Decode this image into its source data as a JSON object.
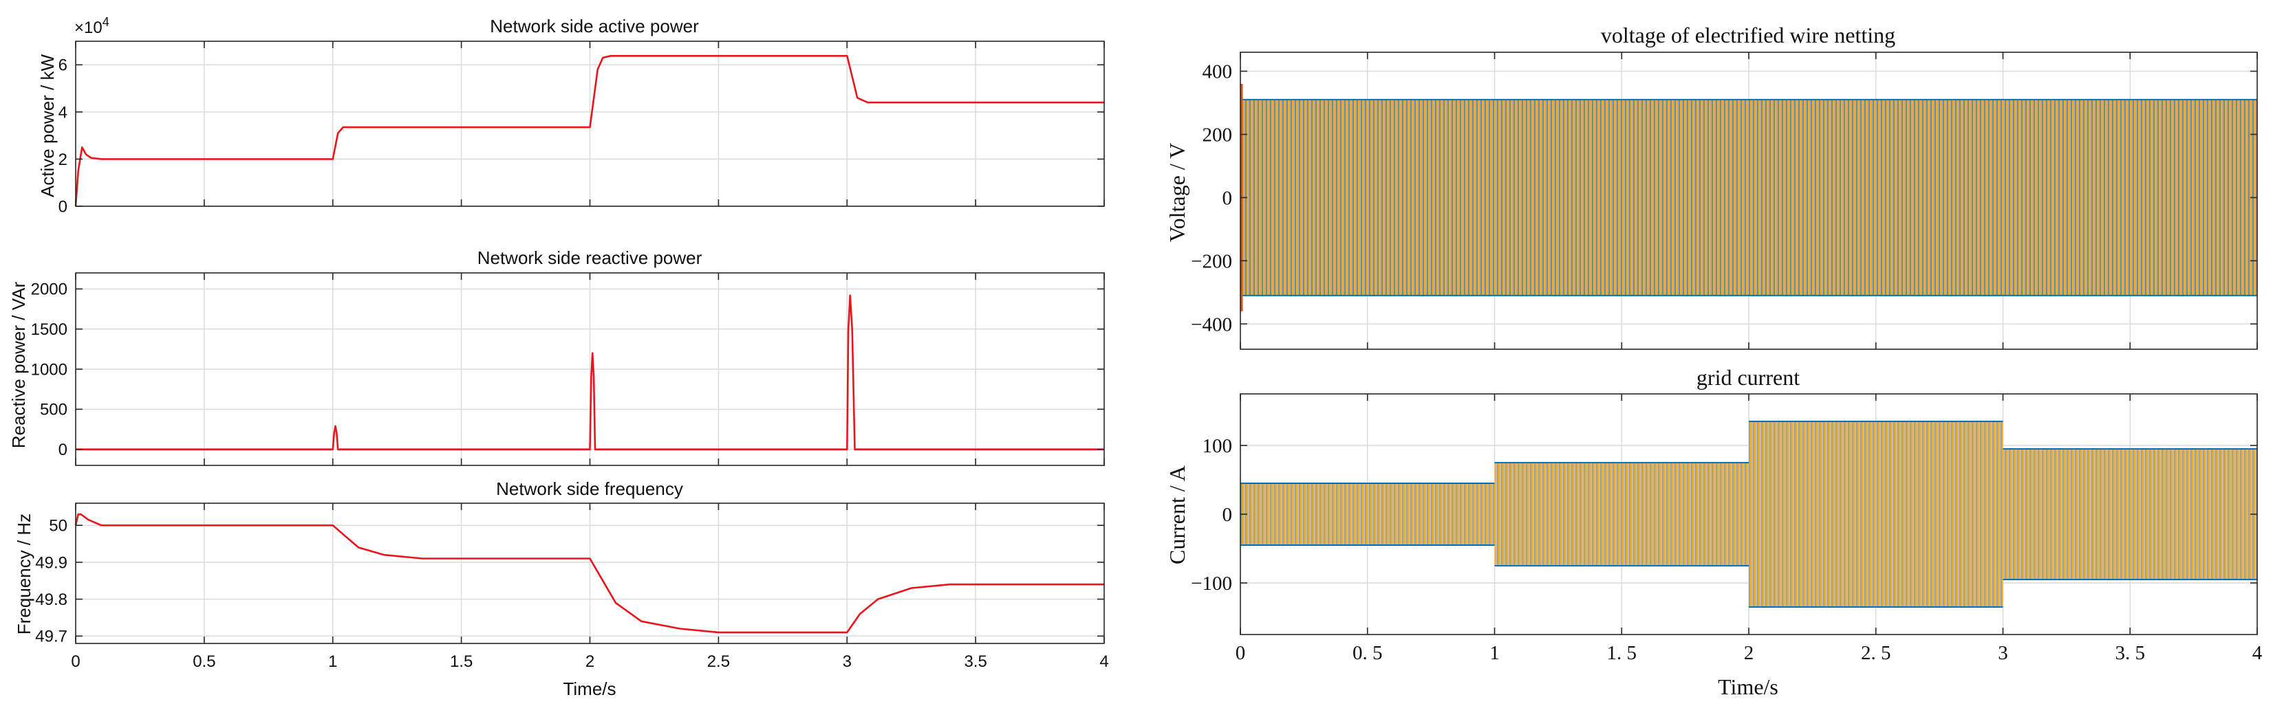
{
  "figure": {
    "left_xlabel": "Time/s",
    "right_xlabel": "Time/s"
  },
  "chart_data": [
    {
      "id": "active",
      "type": "line",
      "title": "Network side active power",
      "xlabel": "",
      "ylabel": "Active power / kW",
      "xlim": [
        0,
        4
      ],
      "ylim": [
        0,
        70000
      ],
      "x_ticks": [
        "0",
        "0.5",
        "1",
        "1.5",
        "2",
        "2.5",
        "3",
        "3.5",
        "4"
      ],
      "y_ticks": [
        0,
        20000,
        40000,
        60000
      ],
      "y_tick_labels": [
        "0",
        "2",
        "4",
        "6"
      ],
      "y_exponent": "×10",
      "y_exponent_power": "4",
      "grid": true,
      "line_color": "#e8151b",
      "series": [
        {
          "points": [
            [
              0,
              0
            ],
            [
              0.01,
              15000
            ],
            [
              0.025,
              25000
            ],
            [
              0.04,
              22000
            ],
            [
              0.06,
              20500
            ],
            [
              0.1,
              20000
            ],
            [
              1.0,
              20000
            ],
            [
              1.02,
              31000
            ],
            [
              1.04,
              33500
            ],
            [
              2.0,
              33500
            ],
            [
              2.03,
              58000
            ],
            [
              2.05,
              63000
            ],
            [
              2.08,
              63800
            ],
            [
              3.0,
              63800
            ],
            [
              3.02,
              55000
            ],
            [
              3.04,
              46000
            ],
            [
              3.08,
              44000
            ],
            [
              4.0,
              44000
            ]
          ]
        }
      ]
    },
    {
      "id": "reactive",
      "type": "line",
      "title": "Network side reactive power",
      "xlabel": "",
      "ylabel": "Reactive power / VAr",
      "xlim": [
        0,
        4
      ],
      "ylim": [
        -200,
        2200
      ],
      "x_ticks": [
        "0",
        "0.5",
        "1",
        "1.5",
        "2",
        "2.5",
        "3",
        "3.5",
        "4"
      ],
      "y_ticks": [
        "0",
        "500",
        "1000",
        "1500",
        "2000"
      ],
      "grid": true,
      "line_color": "#e8151b",
      "series": [
        {
          "points": [
            [
              0,
              0
            ],
            [
              1.0,
              0
            ],
            [
              1.005,
              200
            ],
            [
              1.01,
              290
            ],
            [
              1.015,
              200
            ],
            [
              1.02,
              0
            ],
            [
              2.0,
              0
            ],
            [
              2.005,
              900
            ],
            [
              2.01,
              1200
            ],
            [
              2.015,
              900
            ],
            [
              2.02,
              0
            ],
            [
              3.0,
              0
            ],
            [
              3.005,
              1500
            ],
            [
              3.012,
              1920
            ],
            [
              3.02,
              1500
            ],
            [
              3.03,
              0
            ],
            [
              4.0,
              0
            ]
          ]
        }
      ]
    },
    {
      "id": "frequency",
      "type": "line",
      "title": "Network side frequency",
      "xlabel": "Time/s",
      "ylabel": "Frequency / Hz",
      "xlim": [
        0,
        4
      ],
      "ylim": [
        49.68,
        50.06
      ],
      "x_ticks": [
        "0",
        "0.5",
        "1",
        "1.5",
        "2",
        "2.5",
        "3",
        "3.5",
        "4"
      ],
      "y_ticks": [
        "49.7",
        "49.8",
        "49.9",
        "50"
      ],
      "grid": true,
      "line_color": "#e8151b",
      "series": [
        {
          "points": [
            [
              0,
              50.0
            ],
            [
              0.01,
              50.03
            ],
            [
              0.02,
              50.03
            ],
            [
              0.05,
              50.015
            ],
            [
              0.1,
              50.0
            ],
            [
              1.0,
              50.0
            ],
            [
              1.05,
              49.97
            ],
            [
              1.1,
              49.94
            ],
            [
              1.2,
              49.92
            ],
            [
              1.35,
              49.91
            ],
            [
              2.0,
              49.91
            ],
            [
              2.05,
              49.85
            ],
            [
              2.1,
              49.79
            ],
            [
              2.2,
              49.74
            ],
            [
              2.35,
              49.72
            ],
            [
              2.5,
              49.71
            ],
            [
              3.0,
              49.71
            ],
            [
              3.05,
              49.76
            ],
            [
              3.12,
              49.8
            ],
            [
              3.25,
              49.83
            ],
            [
              3.4,
              49.84
            ],
            [
              4.0,
              49.84
            ]
          ]
        }
      ]
    },
    {
      "id": "voltage",
      "type": "line",
      "title": "voltage of electrified wire netting",
      "xlabel": "",
      "ylabel": "Voltage / V",
      "xlim": [
        0,
        4
      ],
      "ylim": [
        -480,
        460
      ],
      "y_ticks": [
        "-400",
        "-200",
        "0",
        "200",
        "400"
      ],
      "grid": true,
      "series": [
        {
          "name": "",
          "style": "three-phase-envelope",
          "amplitude_segments": [
            [
              0,
              1,
              310
            ],
            [
              1,
              2,
              310
            ],
            [
              2,
              3,
              310
            ],
            [
              3,
              4,
              310
            ]
          ],
          "start_peak": 360,
          "colors": [
            "#0072bd",
            "#d95319",
            "#edb120"
          ]
        }
      ]
    },
    {
      "id": "current",
      "type": "line",
      "title": "grid current",
      "xlabel": "Time/s",
      "ylabel": "Current / A",
      "xlim": [
        0,
        4
      ],
      "ylim": [
        -175,
        175
      ],
      "x_ticks": [
        "0",
        "0. 5",
        "1",
        "1. 5",
        "2",
        "2. 5",
        "3",
        "3. 5",
        "4"
      ],
      "y_ticks": [
        "-100",
        "0",
        "100"
      ],
      "grid": true,
      "series": [
        {
          "name": "",
          "style": "three-phase-envelope",
          "amplitude_segments": [
            [
              0,
              1,
              45
            ],
            [
              1,
              2,
              75
            ],
            [
              2,
              3,
              135
            ],
            [
              3,
              4,
              95
            ]
          ],
          "colors": [
            "#0072bd",
            "#d95319",
            "#edb120"
          ]
        }
      ]
    }
  ]
}
